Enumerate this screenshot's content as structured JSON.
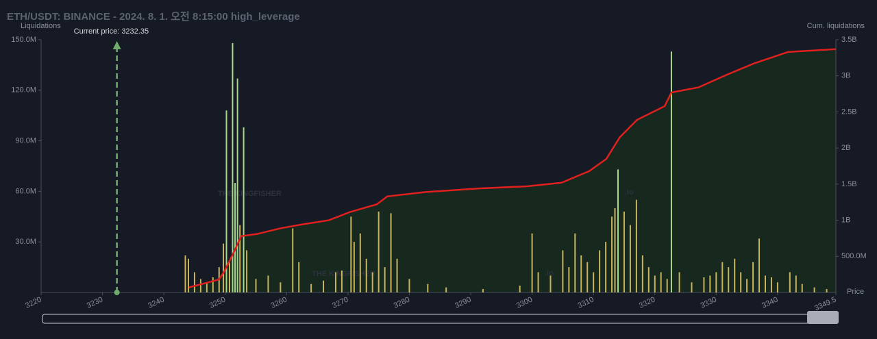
{
  "chart_data": {
    "type": "bar",
    "title": "ETH/USDT: BINANCE - 2024. 8. 1. 오전 8:15:00 high_leverage",
    "y_label": "Liquidations",
    "y2_label": "Cum. liquidations",
    "x_label": "Price",
    "watermark": "THE KINGFISHER",
    "watermark_suffix": ".io",
    "current_price": {
      "value": 3232.35,
      "label": "Current price: 3232.35"
    },
    "xlim": [
      3220,
      3349.5
    ],
    "xticks": [
      3220,
      3230,
      3240,
      3250,
      3260,
      3270,
      3280,
      3290,
      3300,
      3310,
      3320,
      3330,
      3340,
      3349.5
    ],
    "ylim": [
      0,
      150
    ],
    "yticks": [
      {
        "value": 30,
        "label": "30.0M"
      },
      {
        "value": 60,
        "label": "60.0M"
      },
      {
        "value": 90,
        "label": "90.0M"
      },
      {
        "value": 120,
        "label": "120.0M"
      },
      {
        "value": 150,
        "label": "150.0M"
      }
    ],
    "y2lim": [
      0,
      3.5
    ],
    "y2ticks": [
      {
        "value": 0.5,
        "label": "500.0M"
      },
      {
        "value": 1,
        "label": "1B"
      },
      {
        "value": 1.5,
        "label": "1.5B"
      },
      {
        "value": 2,
        "label": "2B"
      },
      {
        "value": 2.5,
        "label": "2.5B"
      },
      {
        "value": 3,
        "label": "3B"
      },
      {
        "value": 3.5,
        "label": "3.5B"
      }
    ],
    "bars": {
      "x": [
        3243.5,
        3244,
        3245,
        3246,
        3247,
        3248,
        3249,
        3249.7,
        3250.2,
        3250.7,
        3251.2,
        3251.6,
        3252,
        3252.4,
        3253,
        3253.5,
        3255,
        3257,
        3259,
        3261,
        3262,
        3264,
        3266,
        3268,
        3269,
        3270.5,
        3271,
        3272,
        3273,
        3274,
        3275,
        3276,
        3277,
        3278,
        3280,
        3283,
        3286,
        3292,
        3298,
        3300,
        3301,
        3303,
        3305,
        3306,
        3307,
        3308,
        3309,
        3310,
        3311,
        3312,
        3313,
        3313.5,
        3314,
        3315,
        3316,
        3317,
        3318,
        3319,
        3320,
        3321,
        3322,
        3322.7,
        3324,
        3326,
        3328,
        3329,
        3330,
        3331,
        3332,
        3333,
        3334,
        3335,
        3336,
        3337,
        3338,
        3339,
        3340,
        3342,
        3343,
        3344,
        3346,
        3348
      ],
      "values": [
        22,
        20,
        12,
        8,
        6,
        9,
        15,
        29,
        108,
        18,
        148,
        65,
        127,
        40,
        98,
        25,
        8,
        10,
        6,
        38,
        18,
        5,
        7,
        12,
        13,
        45,
        30,
        35,
        20,
        12,
        48,
        15,
        47,
        20,
        8,
        5,
        3,
        2,
        4,
        35,
        12,
        10,
        25,
        15,
        35,
        22,
        18,
        12,
        25,
        30,
        45,
        50,
        73,
        48,
        40,
        55,
        22,
        15,
        10,
        12,
        8,
        143,
        12,
        6,
        9,
        10,
        12,
        18,
        15,
        20,
        12,
        8,
        18,
        32,
        10,
        9,
        6,
        12,
        10,
        5,
        3,
        2
      ],
      "colors": [
        "#c9b45c",
        "#c9b45c",
        "#c9b45c",
        "#c9b45c",
        "#c9b45c",
        "#c9b45c",
        "#c9b45c",
        "#c9b45c",
        "#a9d98c",
        "#c9b45c",
        "#a9d98c",
        "#a9d98c",
        "#a9d98c",
        "#c9b45c",
        "#a9d98c",
        "#c9b45c",
        "#c9b45c",
        "#c9b45c",
        "#c9b45c",
        "#c9b45c",
        "#c9b45c",
        "#c9b45c",
        "#c9b45c",
        "#c9b45c",
        "#c9b45c",
        "#c9b45c",
        "#c9b45c",
        "#c9b45c",
        "#c9b45c",
        "#c9b45c",
        "#c9b45c",
        "#c9b45c",
        "#c9b45c",
        "#c9b45c",
        "#c9b45c",
        "#c9b45c",
        "#c9b45c",
        "#c9b45c",
        "#c9b45c",
        "#c9b45c",
        "#c9b45c",
        "#c9b45c",
        "#c9b45c",
        "#c9b45c",
        "#c9b45c",
        "#c9b45c",
        "#c9b45c",
        "#c9b45c",
        "#c9b45c",
        "#c9b45c",
        "#c9b45c",
        "#c9b45c",
        "#a9d98c",
        "#c9b45c",
        "#c9b45c",
        "#c9b45c",
        "#c9b45c",
        "#c9b45c",
        "#c9b45c",
        "#c9b45c",
        "#c9b45c",
        "#a9d98c",
        "#c9b45c",
        "#c9b45c",
        "#c9b45c",
        "#c9b45c",
        "#c9b45c",
        "#c9b45c",
        "#c9b45c",
        "#c9b45c",
        "#c9b45c",
        "#c9b45c",
        "#c9b45c",
        "#c9b45c",
        "#c9b45c",
        "#c9b45c",
        "#c9b45c",
        "#c9b45c",
        "#c9b45c",
        "#c9b45c",
        "#c9b45c",
        "#c9b45c"
      ]
    },
    "cumulative": {
      "axis": "y2",
      "color": "#e0201e",
      "fill": "#17291f",
      "x": [
        3244.1,
        3249.0,
        3249.9,
        3251.3,
        3252.6,
        3255.2,
        3259.1,
        3262.4,
        3266.9,
        3270.2,
        3274.7,
        3276.4,
        3282.5,
        3291.4,
        3299.2,
        3304.8,
        3309.3,
        3312.1,
        3314.3,
        3317.1,
        3321.6,
        3322.7,
        3327.1,
        3331.6,
        3336.1,
        3341.7,
        3349.5
      ],
      "values": [
        0.07,
        0.18,
        0.3,
        0.54,
        0.78,
        0.81,
        0.89,
        0.94,
        1.0,
        1.11,
        1.22,
        1.33,
        1.39,
        1.44,
        1.47,
        1.52,
        1.68,
        1.85,
        2.15,
        2.39,
        2.58,
        2.77,
        2.84,
        3.01,
        3.17,
        3.33,
        3.37
      ]
    }
  }
}
